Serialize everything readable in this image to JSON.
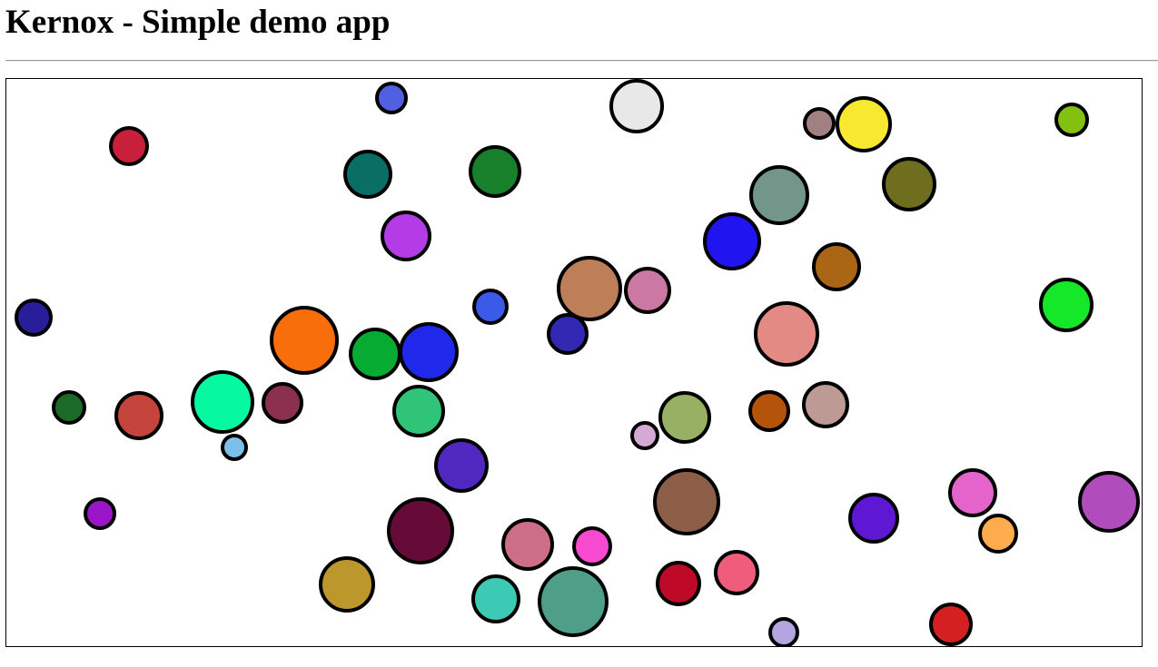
{
  "page": {
    "title": "Kernox - Simple demo app"
  },
  "circles": [
    {
      "color": "#c8203a"
    },
    {
      "color": "#5060e0"
    },
    {
      "color": "#0a6e64"
    },
    {
      "color": "#18802a"
    },
    {
      "color": "#b43ce6"
    },
    {
      "color": "#e8e8e8"
    },
    {
      "color": "#a08080"
    },
    {
      "color": "#f8e830"
    },
    {
      "color": "#84c010"
    },
    {
      "color": "#6e6e1e"
    },
    {
      "color": "#72968a"
    },
    {
      "color": "#2014f0"
    },
    {
      "color": "#aa6614"
    },
    {
      "color": "#be7e58"
    },
    {
      "color": "#cc78a4"
    },
    {
      "color": "#3c5ae8"
    },
    {
      "color": "#3228b4"
    },
    {
      "color": "#281e9a"
    },
    {
      "color": "#f86e0a"
    },
    {
      "color": "#06ac32"
    },
    {
      "color": "#2028ec"
    },
    {
      "color": "#e48a84"
    },
    {
      "color": "#14e828"
    },
    {
      "color": "#1c6a28"
    },
    {
      "color": "#c4443c"
    },
    {
      "color": "#06f8a0"
    },
    {
      "color": "#8c3050"
    },
    {
      "color": "#30c478"
    },
    {
      "color": "#7cc0ea"
    },
    {
      "color": "#d4aad4"
    },
    {
      "color": "#98b064"
    },
    {
      "color": "#b4540a"
    },
    {
      "color": "#be9a94"
    },
    {
      "color": "#5028c0"
    },
    {
      "color": "#9c14c8"
    },
    {
      "color": "#660a38"
    },
    {
      "color": "#8c5e48"
    },
    {
      "color": "#cc6e88"
    },
    {
      "color": "#f84ad0"
    },
    {
      "color": "#5e18d4"
    },
    {
      "color": "#e464cc"
    },
    {
      "color": "#b04cbc"
    },
    {
      "color": "#ffac4c"
    },
    {
      "color": "#bc982c"
    },
    {
      "color": "#3ccab4"
    },
    {
      "color": "#4e9e88"
    },
    {
      "color": "#be0a28"
    },
    {
      "color": "#f05c7c"
    },
    {
      "color": "#b4a4e0"
    },
    {
      "color": "#d42020"
    }
  ]
}
